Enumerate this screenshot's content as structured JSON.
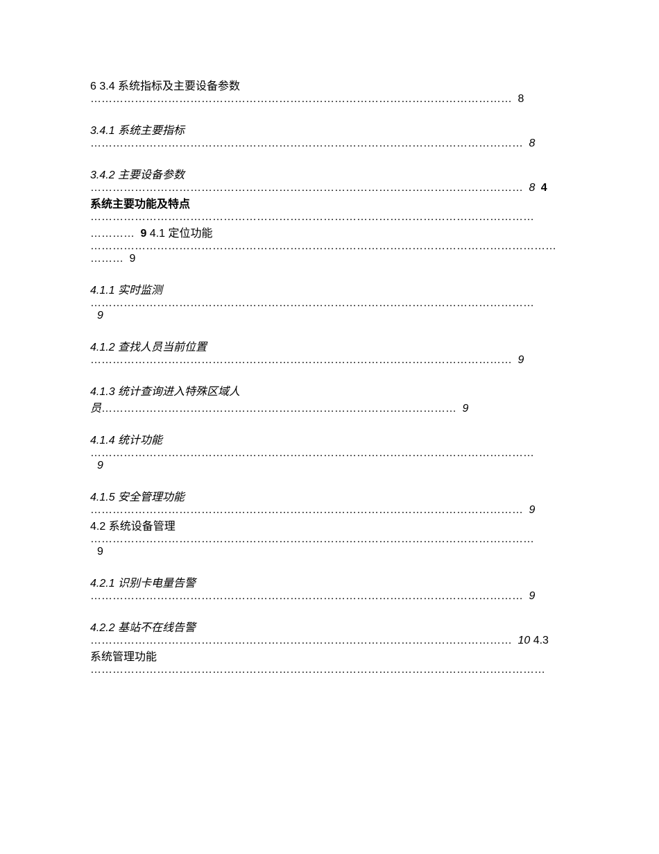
{
  "entries": {
    "e1_prefix": " 6 ",
    "e1_number": "3.4",
    "e1_title": " 系统指标及主要设备参数",
    "e1_page": " 8",
    "e2_number": "3.4.1",
    "e2_title": " 系统主要指标",
    "e2_page": " 8",
    "e3_number": "3.4.2",
    "e3_title": " 主要设备参数",
    "e3_page": " 8",
    "e3_suffix": " 4",
    "e4_title": "系统主要功能及特点",
    "e4_page": " 9",
    "e5_number": " 4.1",
    "e5_title": " 定位功能",
    "e5_page": " 9",
    "e6_number": "4.1.1",
    "e6_title": " 实时监测",
    "e6_page": " 9",
    "e7_number": "4.1.2",
    "e7_title": " 查找人员当前位置",
    "e7_page": " 9",
    "e8_number": "4.1.3",
    "e8_title": " 统计查询进入特殊区域人",
    "e8_title_cont": "员",
    "e8_page": " 9",
    "e9_number": "4.1.4",
    "e9_title": " 统计功能",
    "e9_page": " 9",
    "e10_number": "4.1.5",
    "e10_title": " 安全管理功能",
    "e10_page": " 9",
    "e11_number": "4.2",
    "e11_title": " 系统设备管理",
    "e11_page": " 9",
    "e12_number": "4.2.1",
    "e12_title": " 识别卡电量告警",
    "e12_page": " 9",
    "e13_number": "4.2.2",
    "e13_title": " 基站不在线告警",
    "e13_page": " 10",
    "e13_suffix": " 4.3",
    "e14_title": "系统管理功能"
  },
  "dots": {
    "short": "……………………………………………………………………………………………………",
    "medium": "………………………………………………………………………………………………………",
    "long": "…………………………………………………………………………………………………………",
    "bold": "…………………………………………………………………………………………………………",
    "bold_short": "…………",
    "e5_dots": "………………………………………………………………………………………………………………",
    "e5_dots2": "………",
    "e7_dots": "……………………………………………………………………………………………………",
    "e8_dots": "……………………………………………………………………………………",
    "e12_dots": "………………………………………………………………………………………………………",
    "e13_dots": "……………………………………………………………………………………………………",
    "e14_dots": "……………………………………………………………………………………………………………"
  },
  "styling": {
    "font_size": 16,
    "text_color": "#000000",
    "background_color": "#ffffff"
  }
}
